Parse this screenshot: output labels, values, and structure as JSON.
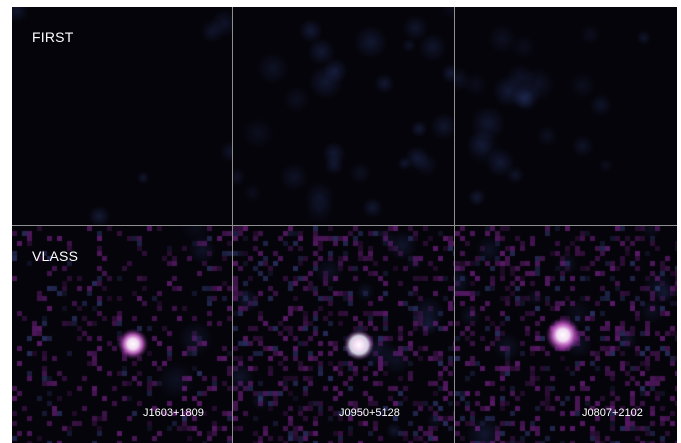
{
  "rows": [
    {
      "label": "FIRST"
    },
    {
      "label": "VLASS"
    }
  ],
  "sources": [
    "J1603+1809",
    "J0950+5128",
    "J0807+2102"
  ],
  "colors": {
    "background": "#05040a",
    "faint_emission": "#2a3a6a",
    "vlass_noise": "#7a2a8a",
    "bright_core": "#ffffff",
    "divider": "#8f8f8f"
  }
}
